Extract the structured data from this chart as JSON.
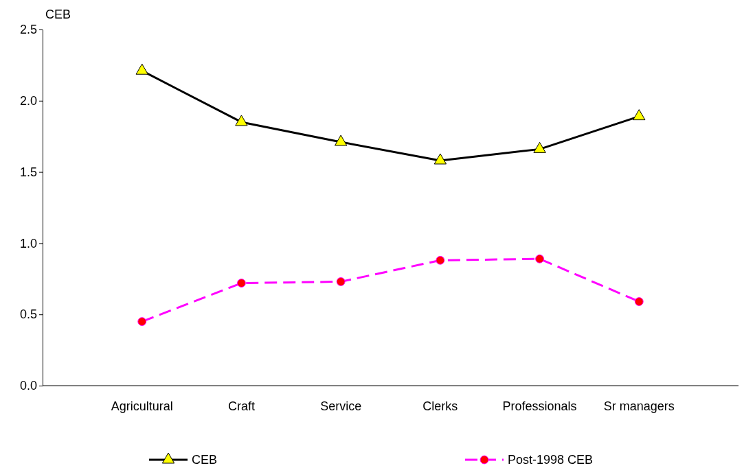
{
  "chart_data": {
    "type": "line",
    "ylabel": "CEB",
    "categories": [
      "Agricultural",
      "Craft",
      "Service",
      "Clerks",
      "Professionals",
      "Sr managers"
    ],
    "series": [
      {
        "name": "CEB",
        "color": "#000000",
        "marker": "triangle",
        "line_style": "solid",
        "values": [
          2.21,
          1.85,
          1.71,
          1.58,
          1.66,
          1.89
        ]
      },
      {
        "name": "Post-1998 CEB",
        "color": "#ff00ff",
        "marker": "circle",
        "line_style": "dashed",
        "values": [
          0.45,
          0.72,
          0.73,
          0.88,
          0.89,
          0.59
        ]
      }
    ],
    "ylim": [
      0,
      2.5
    ],
    "yticks": [
      {
        "value": 0,
        "label": "0.0"
      },
      {
        "value": 0.5,
        "label": "0.5"
      },
      {
        "value": 1,
        "label": "1.0"
      },
      {
        "value": 1.5,
        "label": "1.5"
      },
      {
        "value": 2,
        "label": "2.0"
      },
      {
        "value": 2.5,
        "label": "2.5"
      }
    ],
    "grid": false,
    "legend": "bottom"
  }
}
